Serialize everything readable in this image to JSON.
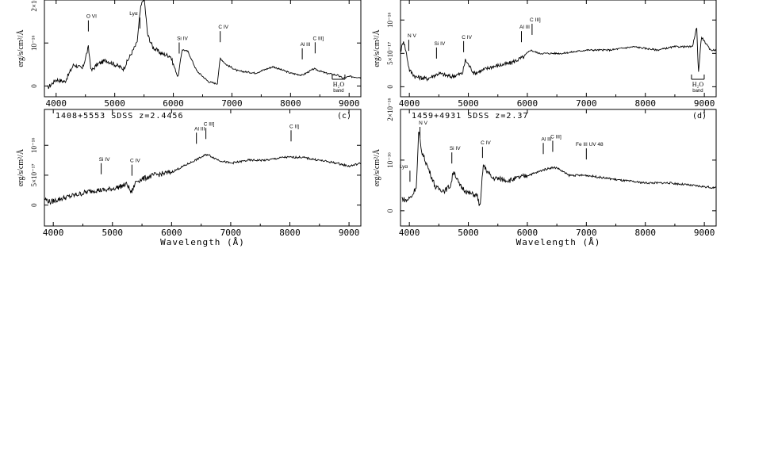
{
  "chart_data": [
    {
      "type": "line",
      "panel_label": "",
      "title": "",
      "xlabel": "",
      "ylabel": "erg/s/cm²/Å",
      "xlim": [
        3800,
        9200
      ],
      "ylim": [
        -0.25,
        2.0
      ],
      "xticks": [
        4000,
        5000,
        6000,
        7000,
        8000,
        9000
      ],
      "yticks": [
        {
          "value": 0,
          "label": "0"
        },
        {
          "value": 1,
          "label": "10⁻¹⁶"
        },
        {
          "value": 2,
          "label": "2×10⁻¹⁶"
        }
      ],
      "series": [
        {
          "x": [
            3850,
            4000,
            4150,
            4300,
            4450,
            4550,
            4600,
            4700,
            4850,
            5000,
            5150,
            5300,
            5380,
            5440,
            5500,
            5560,
            5650,
            5800,
            5950,
            6080,
            6150,
            6250,
            6400,
            6600,
            6750,
            6800,
            6900,
            7100,
            7400,
            7700,
            8000,
            8200,
            8400,
            8600,
            8800,
            8900,
            9000,
            9200
          ],
          "y": [
            -0.05,
            0.15,
            0.1,
            0.5,
            0.4,
            0.9,
            0.35,
            0.5,
            0.6,
            0.5,
            0.4,
            0.8,
            1.0,
            1.8,
            2.1,
            1.2,
            0.9,
            0.75,
            0.7,
            0.2,
            0.85,
            0.8,
            0.35,
            0.1,
            0.05,
            0.65,
            0.5,
            0.35,
            0.3,
            0.45,
            0.3,
            0.25,
            0.4,
            0.3,
            0.25,
            0.18,
            0.22,
            0.2
          ]
        }
      ],
      "annotations": [
        {
          "label": "O VI",
          "x": 4550
        },
        {
          "label": "Lyα",
          "x": 5430
        },
        {
          "label": "Si IV",
          "x": 6100
        },
        {
          "label": "C IV",
          "x": 6800
        },
        {
          "label": "Al III",
          "x": 8200
        },
        {
          "label": "C III]",
          "x": 8420
        },
        {
          "label": "H₂O",
          "x": 8820,
          "sub": "band"
        }
      ]
    },
    {
      "type": "line",
      "panel_label": "",
      "title": "",
      "xlabel": "",
      "ylabel": "erg/s/cm²/Å",
      "xlim": [
        3850,
        9200
      ],
      "ylim": [
        -0.15,
        1.3
      ],
      "xticks": [
        4000,
        5000,
        6000,
        7000,
        8000,
        9000
      ],
      "yticks": [
        {
          "value": 0,
          "label": "0"
        },
        {
          "value": 0.5,
          "label": "5×10⁻¹⁷"
        },
        {
          "value": 1,
          "label": "10⁻¹⁶"
        }
      ],
      "series": [
        {
          "x": [
            3860,
            3900,
            3950,
            4000,
            4100,
            4300,
            4500,
            4700,
            4900,
            4950,
            5100,
            5400,
            5700,
            5950,
            6050,
            6200,
            6600,
            7000,
            7400,
            7800,
            8200,
            8500,
            8800,
            8870,
            8900,
            8950,
            9100,
            9200
          ],
          "y": [
            0.55,
            0.7,
            0.5,
            0.25,
            0.15,
            0.12,
            0.2,
            0.15,
            0.2,
            0.4,
            0.2,
            0.3,
            0.35,
            0.45,
            0.55,
            0.5,
            0.5,
            0.55,
            0.55,
            0.6,
            0.55,
            0.6,
            0.6,
            0.9,
            0.2,
            0.75,
            0.55,
            0.55
          ]
        }
      ],
      "annotations": [
        {
          "label": "N V",
          "x": 3990
        },
        {
          "label": "Si IV",
          "x": 4460
        },
        {
          "label": "C IV",
          "x": 4920
        },
        {
          "label": "Al III",
          "x": 5900
        },
        {
          "label": "C III]",
          "x": 6080
        },
        {
          "label": "H₂O",
          "x": 8890,
          "sub": "band"
        }
      ]
    },
    {
      "type": "line",
      "panel_label": "(c)",
      "title": "1408+5553 SDSS z=2.4456",
      "xlabel": "Wavelength (Å)",
      "ylabel": "erg/s/cm²/Å",
      "xlim": [
        3850,
        9200
      ],
      "ylim": [
        -0.35,
        1.6
      ],
      "xticks": [
        4000,
        5000,
        6000,
        7000,
        8000,
        9000
      ],
      "yticks": [
        {
          "value": 0,
          "label": "0"
        },
        {
          "value": 0.5,
          "label": "5×10⁻¹⁷"
        },
        {
          "value": 1,
          "label": "10⁻¹⁶"
        }
      ],
      "series": [
        {
          "x": [
            3860,
            3950,
            4100,
            4300,
            4500,
            4700,
            4900,
            5100,
            5250,
            5320,
            5400,
            5700,
            6000,
            6300,
            6500,
            6600,
            6800,
            7000,
            7300,
            7600,
            7900,
            8200,
            8500,
            8800,
            9000,
            9200
          ],
          "y": [
            0.1,
            0.05,
            0.1,
            0.15,
            0.2,
            0.25,
            0.25,
            0.3,
            0.35,
            0.2,
            0.4,
            0.5,
            0.55,
            0.7,
            0.8,
            0.85,
            0.75,
            0.7,
            0.75,
            0.75,
            0.8,
            0.8,
            0.75,
            0.7,
            0.65,
            0.7
          ]
        }
      ],
      "annotations": [
        {
          "label": "Si IV",
          "x": 4810
        },
        {
          "label": "C IV",
          "x": 5330
        },
        {
          "label": "Al III",
          "x": 6420
        },
        {
          "label": "C III]",
          "x": 6580
        },
        {
          "label": "C II]",
          "x": 8020
        }
      ]
    },
    {
      "type": "line",
      "panel_label": "(d)",
      "title": "1459+4931 SDSS z=2.37",
      "xlabel": "Wavelength (Å)",
      "ylabel": "erg/s/cm²/Å",
      "xlim": [
        3850,
        9200
      ],
      "ylim": [
        -0.3,
        2.0
      ],
      "xticks": [
        4000,
        5000,
        6000,
        7000,
        8000,
        9000
      ],
      "yticks": [
        {
          "value": 0,
          "label": "0"
        },
        {
          "value": 1,
          "label": "10⁻¹⁶"
        },
        {
          "value": 2,
          "label": "2×10⁻¹⁶"
        }
      ],
      "series": [
        {
          "x": [
            3870,
            3950,
            4050,
            4120,
            4160,
            4200,
            4300,
            4450,
            4600,
            4700,
            4750,
            4850,
            5000,
            5150,
            5200,
            5250,
            5400,
            5700,
            6000,
            6150,
            6250,
            6400,
            6500,
            6700,
            7000,
            7300,
            7600,
            8000,
            8400,
            8800,
            9200
          ],
          "y": [
            0.25,
            0.2,
            0.3,
            0.5,
            1.6,
            1.2,
            0.9,
            0.45,
            0.4,
            0.5,
            0.8,
            0.5,
            0.35,
            0.3,
            0.05,
            0.9,
            0.65,
            0.6,
            0.7,
            0.75,
            0.8,
            0.85,
            0.85,
            0.7,
            0.7,
            0.65,
            0.6,
            0.55,
            0.55,
            0.5,
            0.45
          ]
        }
      ],
      "annotations": [
        {
          "label": "Lyα",
          "x": 4010
        },
        {
          "label": "N V",
          "x": 4180
        },
        {
          "label": "Si IV",
          "x": 4720
        },
        {
          "label": "C IV",
          "x": 5240
        },
        {
          "label": "Al III",
          "x": 6270
        },
        {
          "label": "C III]",
          "x": 6430
        },
        {
          "label": "Fe III UV 48",
          "x": 7000
        }
      ]
    }
  ]
}
